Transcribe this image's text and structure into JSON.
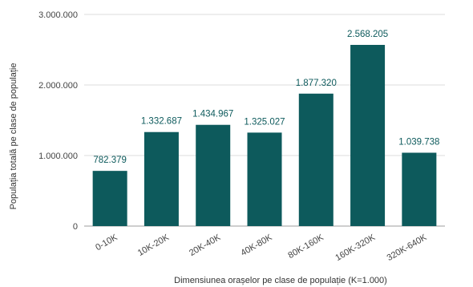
{
  "chart_data": {
    "type": "bar",
    "categories": [
      "0-10K",
      "10K-20K",
      "20K-40K",
      "40K-80K",
      "80K-160K",
      "160K-320K",
      "320K-640K"
    ],
    "values": [
      782379,
      1332687,
      1434967,
      1325027,
      1877320,
      2568205,
      1039738
    ],
    "data_labels": [
      "782.379",
      "1.332.687",
      "1.434.967",
      "1.325.027",
      "1.877.320",
      "2.568.205",
      "1.039.738"
    ],
    "title": "",
    "xlabel": "Dimensiunea orașelor pe clase de populație (K=1.000)",
    "ylabel": "Populația totală pe clase de populație",
    "ylim": [
      0,
      3000000
    ],
    "y_ticks": [
      0,
      1000000,
      2000000,
      3000000
    ],
    "y_tick_labels": [
      "0",
      "1.000.000",
      "2.000.000",
      "3.000.000"
    ],
    "grid": true,
    "legend": "none",
    "bar_color": "#0d5a5c",
    "label_color": "#0d5a5c"
  }
}
